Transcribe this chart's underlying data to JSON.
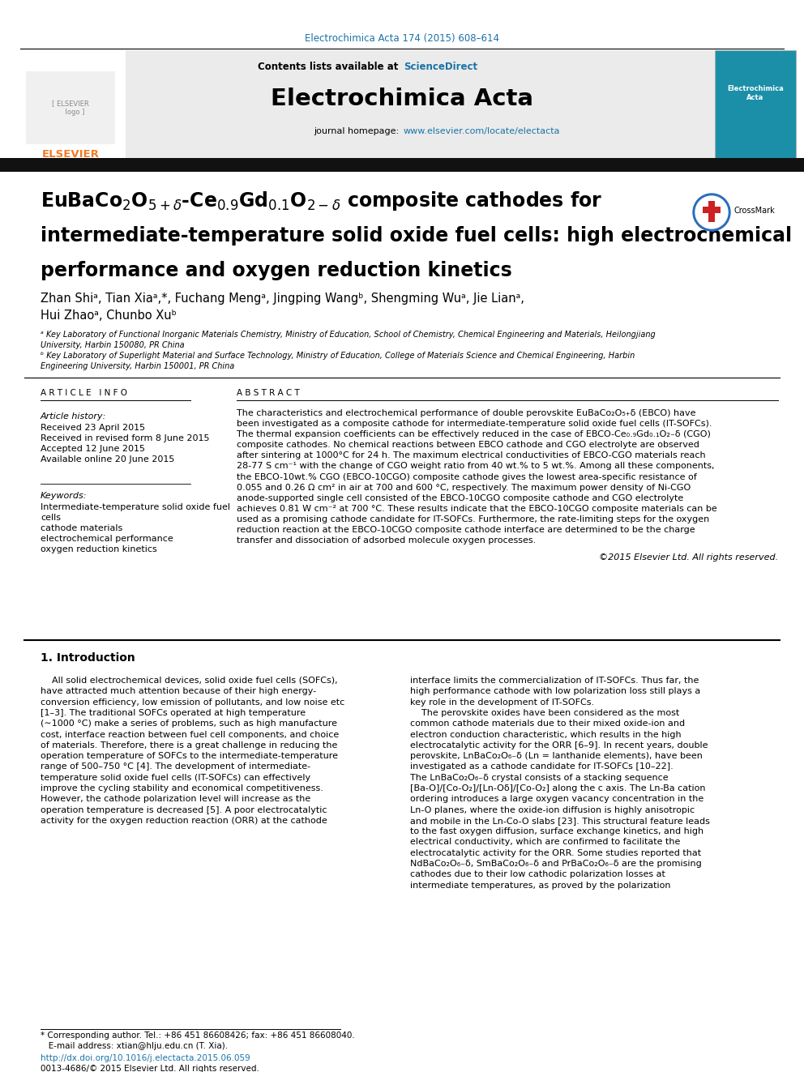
{
  "page_bg": "#ffffff",
  "top_citation": "Electrochimica Acta 174 (2015) 608–614",
  "top_citation_color": "#1a73a7",
  "journal_name": "Electrochimica Acta",
  "header_bg": "#e8e8e8",
  "contents_text": "Contents lists available at ",
  "sciencedirect_text": "ScienceDirect",
  "sciencedirect_color": "#1a73a7",
  "journal_homepage_label": "journal homepage: ",
  "journal_url": "www.elsevier.com/locate/electacta",
  "journal_url_color": "#1a73a7",
  "elsevier_color": "#f47920",
  "article_title_l1": "EuBaCo$_2$O$_{5+\\delta}$-Ce$_{0.9}$Gd$_{0.1}$O$_{2-\\delta}$ composite cathodes for",
  "article_title_l2": "intermediate-temperature solid oxide fuel cells: high electrochemical",
  "article_title_l3": "performance and oxygen reduction kinetics",
  "authors_l1": "Zhan Shiᵃ, Tian Xiaᵃ,*, Fuchang Mengᵃ, Jingping Wangᵇ, Shengming Wuᵃ, Jie Lianᵃ,",
  "authors_l2": "Hui Zhaoᵃ, Chunbo Xuᵇ",
  "affil_a": "ᵃ Key Laboratory of Functional Inorganic Materials Chemistry, Ministry of Education, School of Chemistry, Chemical Engineering and Materials, Heilongjiang",
  "affil_a2": "University, Harbin 150080, PR China",
  "affil_b": "ᵇ Key Laboratory of Superlight Material and Surface Technology, Ministry of Education, College of Materials Science and Chemical Engineering, Harbin",
  "affil_b2": "Engineering University, Harbin 150001, PR China",
  "article_info_header": "A R T I C L E   I N F O",
  "abstract_header": "A B S T R A C T",
  "article_history_label": "Article history:",
  "received1": "Received 23 April 2015",
  "received2": "Received in revised form 8 June 2015",
  "accepted": "Accepted 12 June 2015",
  "available": "Available online 20 June 2015",
  "keywords_label": "Keywords:",
  "keyword1": "Intermediate-temperature solid oxide fuel",
  "keyword1b": "cells",
  "keyword2": "cathode materials",
  "keyword3": "electrochemical performance",
  "keyword4": "oxygen reduction kinetics",
  "abstract_lines": [
    "The characteristics and electrochemical performance of double perovskite EuBaCo₂O₅₊δ (EBCO) have",
    "been investigated as a composite cathode for intermediate-temperature solid oxide fuel cells (IT-SOFCs).",
    "The thermal expansion coefficients can be effectively reduced in the case of EBCO-Ce₀.₉Gd₀.₁O₂₋δ (CGO)",
    "composite cathodes. No chemical reactions between EBCO cathode and CGO electrolyte are observed",
    "after sintering at 1000°C for 24 h. The maximum electrical conductivities of EBCO-CGO materials reach",
    "28-77 S cm⁻¹ with the change of CGO weight ratio from 40 wt.% to 5 wt.%. Among all these components,",
    "the EBCO-10wt.% CGO (EBCO-10CGO) composite cathode gives the lowest area-specific resistance of",
    "0.055 and 0.26 Ω cm² in air at 700 and 600 °C, respectively. The maximum power density of Ni-CGO",
    "anode-supported single cell consisted of the EBCO-10CGO composite cathode and CGO electrolyte",
    "achieves 0.81 W cm⁻² at 700 °C. These results indicate that the EBCO-10CGO composite materials can be",
    "used as a promising cathode candidate for IT-SOFCs. Furthermore, the rate-limiting steps for the oxygen",
    "reduction reaction at the EBCO-10CGO composite cathode interface are determined to be the charge",
    "transfer and dissociation of adsorbed molecule oxygen processes."
  ],
  "copyright": "©2015 Elsevier Ltd. All rights reserved.",
  "section1_header": "1. Introduction",
  "intro_col1": [
    "    All solid electrochemical devices, solid oxide fuel cells (SOFCs),",
    "have attracted much attention because of their high energy-",
    "conversion efficiency, low emission of pollutants, and low noise etc",
    "[1–3]. The traditional SOFCs operated at high temperature",
    "(∼1000 °C) make a series of problems, such as high manufacture",
    "cost, interface reaction between fuel cell components, and choice",
    "of materials. Therefore, there is a great challenge in reducing the",
    "operation temperature of SOFCs to the intermediate-temperature",
    "range of 500–750 °C [4]. The development of intermediate-",
    "temperature solid oxide fuel cells (IT-SOFCs) can effectively",
    "improve the cycling stability and economical competitiveness.",
    "However, the cathode polarization level will increase as the",
    "operation temperature is decreased [5]. A poor electrocatalytic",
    "activity for the oxygen reduction reaction (ORR) at the cathode"
  ],
  "intro_col2": [
    "interface limits the commercialization of IT-SOFCs. Thus far, the",
    "high performance cathode with low polarization loss still plays a",
    "key role in the development of IT-SOFCs.",
    "    The perovskite oxides have been considered as the most",
    "common cathode materials due to their mixed oxide-ion and",
    "electron conduction characteristic, which results in the high",
    "electrocatalytic activity for the ORR [6–9]. In recent years, double",
    "perovskite, LnBaCo₂O₆₋δ (Ln = lanthanide elements), have been",
    "investigated as a cathode candidate for IT-SOFCs [10–22].",
    "The LnBaCo₂O₆₋δ crystal consists of a stacking sequence",
    "[Ba-O]/[Co-O₂]/[Ln-Oδ]/[Co-O₂] along the c axis. The Ln-Ba cation",
    "ordering introduces a large oxygen vacancy concentration in the",
    "Ln-O planes, where the oxide-ion diffusion is highly anisotropic",
    "and mobile in the Ln-Co-O slabs [23]. This structural feature leads",
    "to the fast oxygen diffusion, surface exchange kinetics, and high",
    "electrical conductivity, which are confirmed to facilitate the",
    "electrocatalytic activity for the ORR. Some studies reported that",
    "NdBaCo₂O₆₋δ, SmBaCo₂O₆₋δ and PrBaCo₂O₆₋δ are the promising",
    "cathodes due to their low cathodic polarization losses at",
    "intermediate temperatures, as proved by the polarization"
  ],
  "footnote_star": "* Corresponding author. Tel.: +86 451 86608426; fax: +86 451 86608040.",
  "footnote_email": "   E-mail address: xtian@hlju.edu.cn (T. Xia).",
  "footnote_doi": "http://dx.doi.org/10.1016/j.electacta.2015.06.059",
  "footnote_issn": "0013-4686/© 2015 Elsevier Ltd. All rights reserved."
}
